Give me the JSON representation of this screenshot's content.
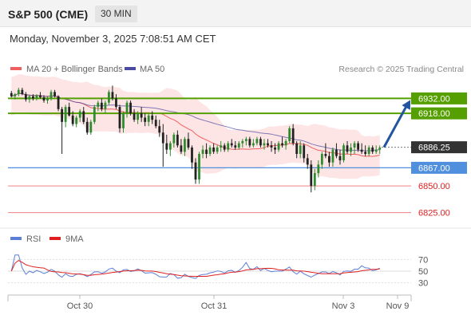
{
  "header": {
    "title": "S&P 500 (CME)",
    "interval": "30 MIN"
  },
  "datetime": "Monday, November 3, 2025 7:08:51 AM CET",
  "legend": {
    "bollinger": "MA 20 + Bollinger Bands",
    "ma50": "MA 50",
    "credit": "Research © 2025 Trading Central",
    "rsi": "RSI",
    "rsi_ma": "9MA"
  },
  "colors": {
    "bull": "#2e8b2e",
    "bear": "#222222",
    "bollinger": "#f06060",
    "bollinger_fill": "#fde0e0",
    "ma50": "#4a4aa0",
    "resistance": "#55a000",
    "support_blue": "#4f8fdd",
    "support_red": "#f08080",
    "arrow": "#2255a0",
    "current": "#333333"
  },
  "chart_data": [
    {
      "type": "candlestick",
      "ylim": [
        6812,
        6948
      ],
      "x_ticks": [
        "Oct 30",
        "Oct 31",
        "Nov 3",
        "Nov 9"
      ],
      "levels": [
        {
          "value": 6932.0,
          "label": "6932.00",
          "kind": "resistance"
        },
        {
          "value": 6918.0,
          "label": "6918.00",
          "kind": "resistance"
        },
        {
          "value": 6886.25,
          "label": "6886.25",
          "kind": "current"
        },
        {
          "value": 6867.0,
          "label": "6867.00",
          "kind": "support_blue"
        },
        {
          "value": 6850.0,
          "label": "6850.00",
          "kind": "support_red"
        },
        {
          "value": 6825.0,
          "label": "6825.00",
          "kind": "support_red"
        }
      ],
      "forecast_arrow": {
        "from": 6886.25,
        "to": 6932.0
      },
      "candles": [
        [
          6937,
          6939,
          6933,
          6934
        ],
        [
          6934,
          6937,
          6931,
          6936
        ],
        [
          6936,
          6942,
          6934,
          6940
        ],
        [
          6940,
          6942,
          6935,
          6936
        ],
        [
          6936,
          6938,
          6929,
          6931
        ],
        [
          6931,
          6935,
          6928,
          6934
        ],
        [
          6934,
          6936,
          6930,
          6932
        ],
        [
          6932,
          6936,
          6930,
          6935
        ],
        [
          6935,
          6938,
          6932,
          6933
        ],
        [
          6933,
          6935,
          6928,
          6930
        ],
        [
          6930,
          6934,
          6927,
          6932
        ],
        [
          6932,
          6940,
          6930,
          6938
        ],
        [
          6938,
          6940,
          6933,
          6934
        ],
        [
          6934,
          6935,
          6920,
          6922
        ],
        [
          6922,
          6924,
          6880,
          6910
        ],
        [
          6910,
          6926,
          6905,
          6924
        ],
        [
          6924,
          6928,
          6915,
          6916
        ],
        [
          6916,
          6920,
          6906,
          6908
        ],
        [
          6908,
          6916,
          6905,
          6914
        ],
        [
          6914,
          6922,
          6910,
          6920
        ],
        [
          6920,
          6924,
          6908,
          6910
        ],
        [
          6910,
          6914,
          6898,
          6900
        ],
        [
          6900,
          6912,
          6898,
          6910
        ],
        [
          6910,
          6926,
          6908,
          6924
        ],
        [
          6924,
          6930,
          6920,
          6928
        ],
        [
          6928,
          6932,
          6920,
          6922
        ],
        [
          6922,
          6930,
          6918,
          6928
        ],
        [
          6928,
          6940,
          6926,
          6938
        ],
        [
          6938,
          6944,
          6930,
          6932
        ],
        [
          6932,
          6936,
          6922,
          6924
        ],
        [
          6924,
          6926,
          6900,
          6904
        ],
        [
          6904,
          6920,
          6900,
          6918
        ],
        [
          6918,
          6930,
          6914,
          6928
        ],
        [
          6928,
          6930,
          6916,
          6918
        ],
        [
          6918,
          6922,
          6910,
          6912
        ],
        [
          6912,
          6920,
          6908,
          6918
        ],
        [
          6918,
          6924,
          6910,
          6914
        ],
        [
          6914,
          6918,
          6906,
          6910
        ],
        [
          6910,
          6918,
          6906,
          6916
        ],
        [
          6916,
          6920,
          6908,
          6912
        ],
        [
          6912,
          6916,
          6904,
          6906
        ],
        [
          6906,
          6912,
          6896,
          6900
        ],
        [
          6900,
          6908,
          6868,
          6890
        ],
        [
          6890,
          6898,
          6880,
          6884
        ],
        [
          6884,
          6892,
          6878,
          6890
        ],
        [
          6890,
          6900,
          6886,
          6898
        ],
        [
          6898,
          6902,
          6886,
          6888
        ],
        [
          6888,
          6894,
          6880,
          6882
        ],
        [
          6882,
          6896,
          6878,
          6894
        ],
        [
          6894,
          6900,
          6884,
          6886
        ],
        [
          6886,
          6888,
          6866,
          6872
        ],
        [
          6872,
          6876,
          6852,
          6856
        ],
        [
          6856,
          6882,
          6852,
          6880
        ],
        [
          6880,
          6888,
          6876,
          6884
        ],
        [
          6884,
          6890,
          6876,
          6880
        ],
        [
          6880,
          6888,
          6878,
          6886
        ],
        [
          6886,
          6890,
          6880,
          6882
        ],
        [
          6882,
          6888,
          6880,
          6886
        ],
        [
          6886,
          6892,
          6882,
          6888
        ],
        [
          6888,
          6890,
          6882,
          6884
        ],
        [
          6884,
          6892,
          6882,
          6890
        ],
        [
          6890,
          6894,
          6886,
          6888
        ],
        [
          6888,
          6892,
          6884,
          6886
        ],
        [
          6886,
          6892,
          6884,
          6890
        ],
        [
          6890,
          6894,
          6886,
          6892
        ],
        [
          6892,
          6896,
          6888,
          6894
        ],
        [
          6894,
          6896,
          6886,
          6888
        ],
        [
          6888,
          6894,
          6886,
          6890
        ],
        [
          6890,
          6896,
          6888,
          6894
        ],
        [
          6894,
          6896,
          6886,
          6888
        ],
        [
          6888,
          6894,
          6884,
          6890
        ],
        [
          6890,
          6894,
          6886,
          6888
        ],
        [
          6888,
          6892,
          6882,
          6886
        ],
        [
          6886,
          6890,
          6880,
          6884
        ],
        [
          6884,
          6892,
          6882,
          6890
        ],
        [
          6890,
          6896,
          6886,
          6888
        ],
        [
          6888,
          6894,
          6884,
          6892
        ],
        [
          6892,
          6906,
          6890,
          6904
        ],
        [
          6904,
          6908,
          6888,
          6890
        ],
        [
          6890,
          6892,
          6876,
          6880
        ],
        [
          6880,
          6892,
          6876,
          6888
        ],
        [
          6888,
          6890,
          6872,
          6876
        ],
        [
          6876,
          6880,
          6866,
          6870
        ],
        [
          6870,
          6874,
          6844,
          6850
        ],
        [
          6850,
          6866,
          6846,
          6862
        ],
        [
          6862,
          6874,
          6858,
          6870
        ],
        [
          6870,
          6882,
          6866,
          6880
        ],
        [
          6880,
          6890,
          6876,
          6878
        ],
        [
          6878,
          6882,
          6868,
          6872
        ],
        [
          6872,
          6886,
          6868,
          6884
        ],
        [
          6884,
          6890,
          6876,
          6878
        ],
        [
          6878,
          6884,
          6870,
          6874
        ],
        [
          6874,
          6890,
          6872,
          6888
        ],
        [
          6888,
          6892,
          6880,
          6882
        ],
        [
          6882,
          6890,
          6878,
          6886
        ],
        [
          6886,
          6892,
          6880,
          6890
        ],
        [
          6890,
          6892,
          6882,
          6884
        ],
        [
          6884,
          6890,
          6880,
          6882
        ],
        [
          6882,
          6888,
          6878,
          6880
        ],
        [
          6880,
          6888,
          6878,
          6886
        ],
        [
          6886,
          6888,
          6880,
          6882
        ],
        [
          6882,
          6888,
          6880,
          6884
        ],
        [
          6884,
          6888,
          6880,
          6886
        ]
      ]
    },
    {
      "type": "line",
      "series": [
        {
          "name": "RSI"
        },
        {
          "name": "9MA"
        }
      ],
      "ylim": [
        20,
        80
      ],
      "y_ticks": [
        70,
        50,
        30
      ]
    }
  ]
}
